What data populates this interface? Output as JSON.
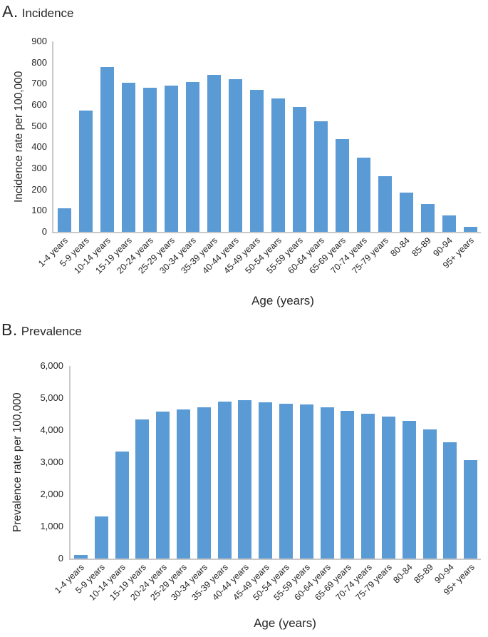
{
  "figure": {
    "panels": [
      {
        "panel_letter": "A.",
        "panel_title": "Incidence"
      },
      {
        "panel_letter": "B.",
        "panel_title": "Prevalence"
      }
    ]
  },
  "colors": {
    "bar": "#5B9BD5",
    "axis_line": "#C9C9C9",
    "text": "#262626"
  },
  "chart_data": [
    {
      "id": "incidence",
      "type": "bar",
      "panel_letter": "A.",
      "title": "Incidence",
      "xlabel": "Age (years)",
      "ylabel": "Incidence rate per 100,000",
      "categories": [
        "1-4 years",
        "5-9 years",
        "10-14 years",
        "15-19 years",
        "20-24 years",
        "25-29 years",
        "30-34 years",
        "35-39 years",
        "40-44 years",
        "45-49 years",
        "50-54 years",
        "55-59 years",
        "60-64 years",
        "65-69 years",
        "70-74 years",
        "75-79 years",
        "80-84",
        "85-89",
        "90-94",
        "95+ years"
      ],
      "values": [
        112,
        572,
        778,
        704,
        680,
        690,
        707,
        740,
        721,
        670,
        630,
        591,
        523,
        437,
        350,
        262,
        187,
        131,
        77,
        23
      ],
      "ylim": [
        0,
        900
      ],
      "yticks": [
        "0",
        "100",
        "200",
        "300",
        "400",
        "500",
        "600",
        "700",
        "800",
        "900"
      ],
      "grid": false,
      "legend": "none",
      "bar_color": "#5B9BD5"
    },
    {
      "id": "prevalence",
      "type": "bar",
      "panel_letter": "B.",
      "title": "Prevalence",
      "xlabel": "Age (years)",
      "ylabel": "Prevalence rate per 100,000",
      "categories": [
        "1-4 years",
        "5-9 years",
        "10-14 years",
        "15-19 years",
        "20-24 years",
        "25-29 years",
        "30-34 years",
        "35-39 years",
        "40-44 years",
        "45-49 years",
        "50-54 years",
        "55-59 years",
        "60-64 years",
        "65-69 years",
        "70-74 years",
        "75-79 years",
        "80-84",
        "85-89",
        "90-94",
        "95+ years"
      ],
      "values": [
        100,
        1310,
        3340,
        4340,
        4580,
        4640,
        4700,
        4880,
        4930,
        4860,
        4820,
        4800,
        4710,
        4610,
        4520,
        4420,
        4290,
        4020,
        3620,
        3070
      ],
      "ylim": [
        0,
        6000
      ],
      "yticks": [
        "0",
        "1,000",
        "2,000",
        "3,000",
        "4,000",
        "5,000",
        "6,000"
      ],
      "grid": false,
      "legend": "none",
      "bar_color": "#5B9BD5"
    }
  ]
}
